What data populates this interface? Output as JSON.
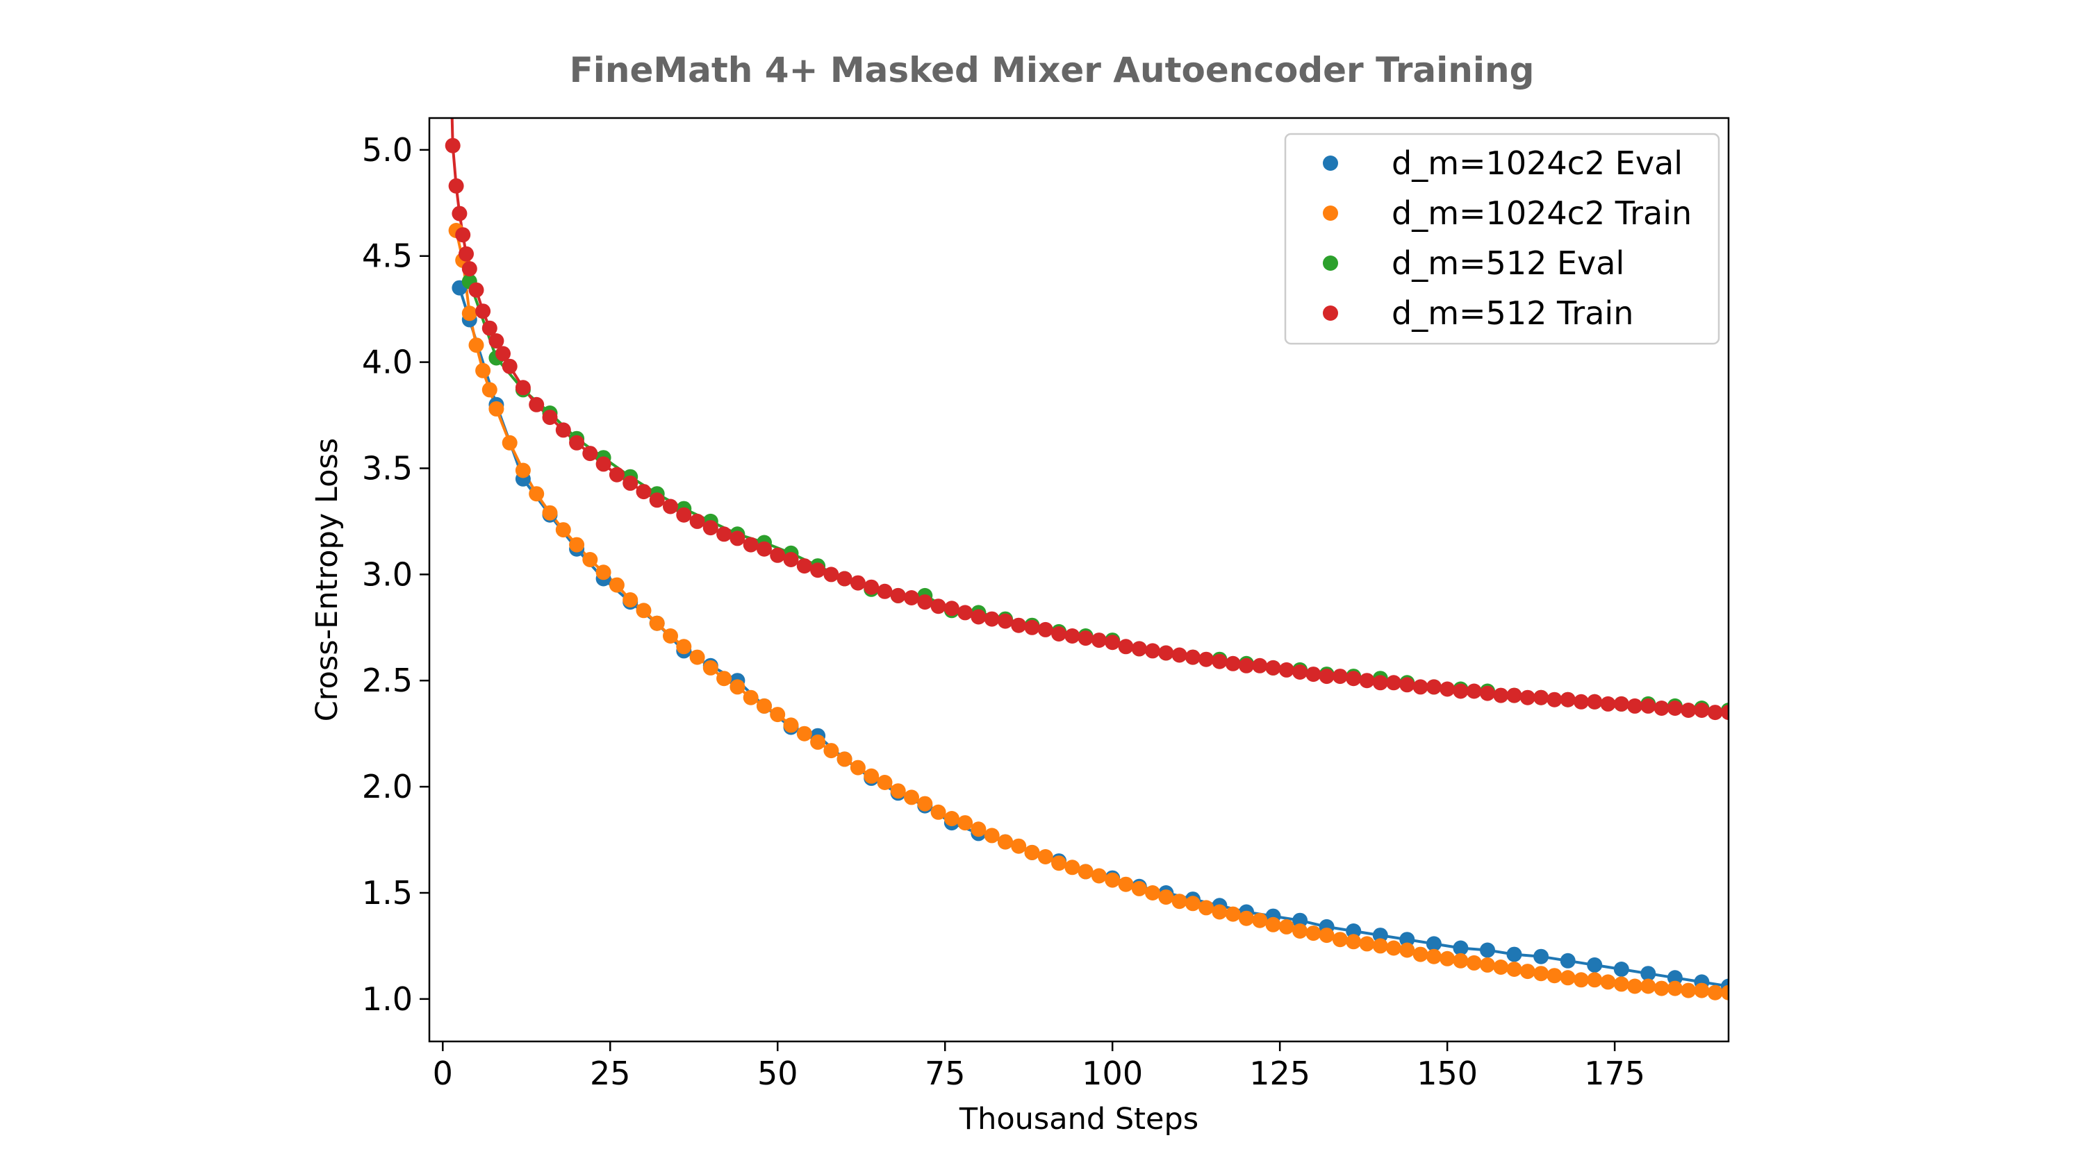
{
  "chart_data": {
    "type": "scatter",
    "title": "FineMath 4+ Masked Mixer Autoencoder Training",
    "xlabel": "Thousand Steps",
    "ylabel": "Cross-Entropy Loss",
    "xlim": [
      -2,
      192
    ],
    "ylim": [
      0.8,
      5.15
    ],
    "xticks": [
      0,
      25,
      50,
      75,
      100,
      125,
      150,
      175
    ],
    "yticks": [
      1.0,
      1.5,
      2.0,
      2.5,
      3.0,
      3.5,
      4.0,
      4.5,
      5.0
    ],
    "grid": false,
    "legend_position": "top-right",
    "series": [
      {
        "name": "d_m=1024c2 Eval",
        "color": "#1f77b4",
        "x": [
          2.5,
          4,
          8,
          12,
          16,
          20,
          24,
          28,
          32,
          36,
          40,
          44,
          48,
          52,
          56,
          60,
          64,
          68,
          72,
          76,
          80,
          84,
          88,
          92,
          96,
          100,
          104,
          108,
          112,
          116,
          120,
          124,
          128,
          132,
          136,
          140,
          144,
          148,
          152,
          156,
          160,
          164,
          168,
          172,
          176,
          180,
          184,
          188,
          192
        ],
        "y": [
          4.35,
          4.2,
          3.8,
          3.45,
          3.28,
          3.12,
          2.98,
          2.87,
          2.77,
          2.64,
          2.57,
          2.5,
          2.38,
          2.28,
          2.24,
          2.13,
          2.04,
          1.97,
          1.91,
          1.83,
          1.78,
          1.74,
          1.69,
          1.65,
          1.6,
          1.57,
          1.53,
          1.5,
          1.47,
          1.44,
          1.41,
          1.39,
          1.37,
          1.34,
          1.32,
          1.3,
          1.28,
          1.26,
          1.24,
          1.23,
          1.21,
          1.2,
          1.18,
          1.16,
          1.14,
          1.12,
          1.1,
          1.08,
          1.06
        ]
      },
      {
        "name": "d_m=1024c2 Train",
        "color": "#ff7f0e",
        "x": [
          2,
          3,
          4,
          5,
          6,
          7,
          8,
          10,
          12,
          14,
          16,
          18,
          20,
          22,
          24,
          26,
          28,
          30,
          32,
          34,
          36,
          38,
          40,
          42,
          44,
          46,
          48,
          50,
          52,
          54,
          56,
          58,
          60,
          62,
          64,
          66,
          68,
          70,
          72,
          74,
          76,
          78,
          80,
          82,
          84,
          86,
          88,
          90,
          92,
          94,
          96,
          98,
          100,
          102,
          104,
          106,
          108,
          110,
          112,
          114,
          116,
          118,
          120,
          122,
          124,
          126,
          128,
          130,
          132,
          134,
          136,
          138,
          140,
          142,
          144,
          146,
          148,
          150,
          152,
          154,
          156,
          158,
          160,
          162,
          164,
          166,
          168,
          170,
          172,
          174,
          176,
          178,
          180,
          182,
          184,
          186,
          188,
          190,
          192
        ],
        "y": [
          4.62,
          4.48,
          4.23,
          4.08,
          3.96,
          3.87,
          3.78,
          3.62,
          3.49,
          3.38,
          3.29,
          3.21,
          3.14,
          3.07,
          3.01,
          2.95,
          2.88,
          2.83,
          2.77,
          2.71,
          2.66,
          2.61,
          2.56,
          2.51,
          2.47,
          2.42,
          2.38,
          2.34,
          2.29,
          2.25,
          2.21,
          2.17,
          2.13,
          2.09,
          2.05,
          2.02,
          1.98,
          1.95,
          1.92,
          1.88,
          1.85,
          1.83,
          1.8,
          1.77,
          1.74,
          1.72,
          1.69,
          1.67,
          1.64,
          1.62,
          1.6,
          1.58,
          1.56,
          1.54,
          1.52,
          1.5,
          1.48,
          1.46,
          1.45,
          1.43,
          1.41,
          1.4,
          1.38,
          1.37,
          1.35,
          1.34,
          1.32,
          1.31,
          1.3,
          1.28,
          1.27,
          1.26,
          1.25,
          1.24,
          1.23,
          1.21,
          1.2,
          1.19,
          1.18,
          1.17,
          1.16,
          1.15,
          1.14,
          1.13,
          1.12,
          1.11,
          1.1,
          1.09,
          1.09,
          1.08,
          1.07,
          1.06,
          1.06,
          1.05,
          1.05,
          1.04,
          1.04,
          1.03,
          1.03
        ]
      },
      {
        "name": "d_m=512 Eval",
        "color": "#2ca02c",
        "x": [
          4,
          8,
          12,
          16,
          20,
          24,
          28,
          32,
          36,
          40,
          44,
          48,
          52,
          56,
          60,
          64,
          68,
          72,
          76,
          80,
          84,
          88,
          92,
          96,
          100,
          104,
          108,
          112,
          116,
          120,
          124,
          128,
          132,
          136,
          140,
          144,
          148,
          152,
          156,
          160,
          164,
          168,
          172,
          176,
          180,
          184,
          188,
          192
        ],
        "y": [
          4.38,
          4.02,
          3.87,
          3.76,
          3.64,
          3.55,
          3.46,
          3.38,
          3.31,
          3.25,
          3.19,
          3.15,
          3.1,
          3.04,
          2.98,
          2.93,
          2.9,
          2.9,
          2.83,
          2.82,
          2.79,
          2.76,
          2.73,
          2.71,
          2.69,
          2.65,
          2.63,
          2.61,
          2.6,
          2.58,
          2.56,
          2.55,
          2.53,
          2.52,
          2.51,
          2.49,
          2.47,
          2.46,
          2.45,
          2.43,
          2.42,
          2.41,
          2.4,
          2.39,
          2.39,
          2.38,
          2.37,
          2.36
        ]
      },
      {
        "name": "d_m=512 Train",
        "color": "#d62728",
        "x": [
          1.5,
          2,
          2.5,
          3,
          3.5,
          4,
          5,
          6,
          7,
          8,
          9,
          10,
          12,
          14,
          16,
          18,
          20,
          22,
          24,
          26,
          28,
          30,
          32,
          34,
          36,
          38,
          40,
          42,
          44,
          46,
          48,
          50,
          52,
          54,
          56,
          58,
          60,
          62,
          64,
          66,
          68,
          70,
          72,
          74,
          76,
          78,
          80,
          82,
          84,
          86,
          88,
          90,
          92,
          94,
          96,
          98,
          100,
          102,
          104,
          106,
          108,
          110,
          112,
          114,
          116,
          118,
          120,
          122,
          124,
          126,
          128,
          130,
          132,
          134,
          136,
          138,
          140,
          142,
          144,
          146,
          148,
          150,
          152,
          154,
          156,
          158,
          160,
          162,
          164,
          166,
          168,
          170,
          172,
          174,
          176,
          178,
          180,
          182,
          184,
          186,
          188,
          190,
          192
        ],
        "y": [
          5.02,
          4.83,
          4.7,
          4.6,
          4.51,
          4.44,
          4.34,
          4.24,
          4.16,
          4.1,
          4.04,
          3.98,
          3.88,
          3.8,
          3.74,
          3.68,
          3.62,
          3.57,
          3.52,
          3.47,
          3.43,
          3.39,
          3.35,
          3.32,
          3.28,
          3.25,
          3.22,
          3.19,
          3.17,
          3.14,
          3.12,
          3.09,
          3.07,
          3.04,
          3.02,
          3.0,
          2.98,
          2.96,
          2.94,
          2.92,
          2.9,
          2.89,
          2.87,
          2.85,
          2.84,
          2.82,
          2.8,
          2.79,
          2.78,
          2.76,
          2.75,
          2.74,
          2.72,
          2.71,
          2.7,
          2.69,
          2.68,
          2.66,
          2.65,
          2.64,
          2.63,
          2.62,
          2.61,
          2.6,
          2.59,
          2.58,
          2.57,
          2.57,
          2.56,
          2.55,
          2.54,
          2.53,
          2.52,
          2.52,
          2.51,
          2.5,
          2.49,
          2.49,
          2.48,
          2.47,
          2.47,
          2.46,
          2.45,
          2.45,
          2.44,
          2.43,
          2.43,
          2.42,
          2.42,
          2.41,
          2.41,
          2.4,
          2.4,
          2.39,
          2.39,
          2.38,
          2.38,
          2.37,
          2.37,
          2.36,
          2.36,
          2.35,
          2.35
        ]
      }
    ]
  }
}
